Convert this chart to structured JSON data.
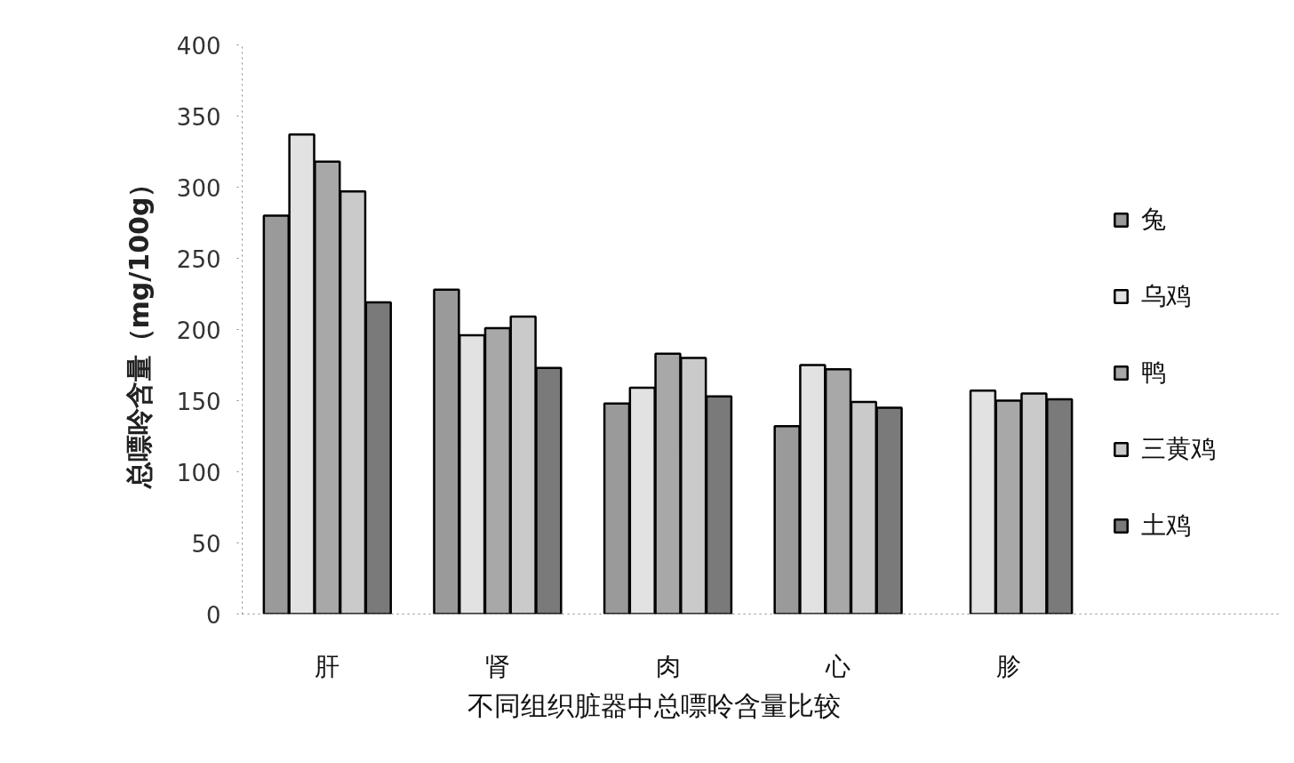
{
  "chart_data": {
    "type": "bar",
    "title": "不同组织脏器中总嘌呤含量比较",
    "ylabel": "总嘌呤含量（mg/100g）",
    "categories": [
      "肝",
      "肾",
      "肉",
      "心",
      "胗"
    ],
    "series": [
      {
        "name": "兔",
        "color": "#9a9a9a",
        "values": [
          280,
          228,
          148,
          132,
          null
        ]
      },
      {
        "name": "乌鸡",
        "color": "#e2e2e2",
        "values": [
          337,
          196,
          159,
          175,
          157
        ]
      },
      {
        "name": "鸭",
        "color": "#a8a8a8",
        "values": [
          318,
          201,
          183,
          172,
          150
        ]
      },
      {
        "name": "三黄鸡",
        "color": "#cacaca",
        "values": [
          297,
          209,
          180,
          149,
          155
        ]
      },
      {
        "name": "土鸡",
        "color": "#7a7a7a",
        "values": [
          219,
          173,
          153,
          145,
          151
        ]
      }
    ],
    "ylim": [
      0,
      400
    ],
    "yticks": [
      0,
      50,
      100,
      150,
      200,
      250,
      300,
      350,
      400
    ],
    "grid": false,
    "legend": "right"
  }
}
